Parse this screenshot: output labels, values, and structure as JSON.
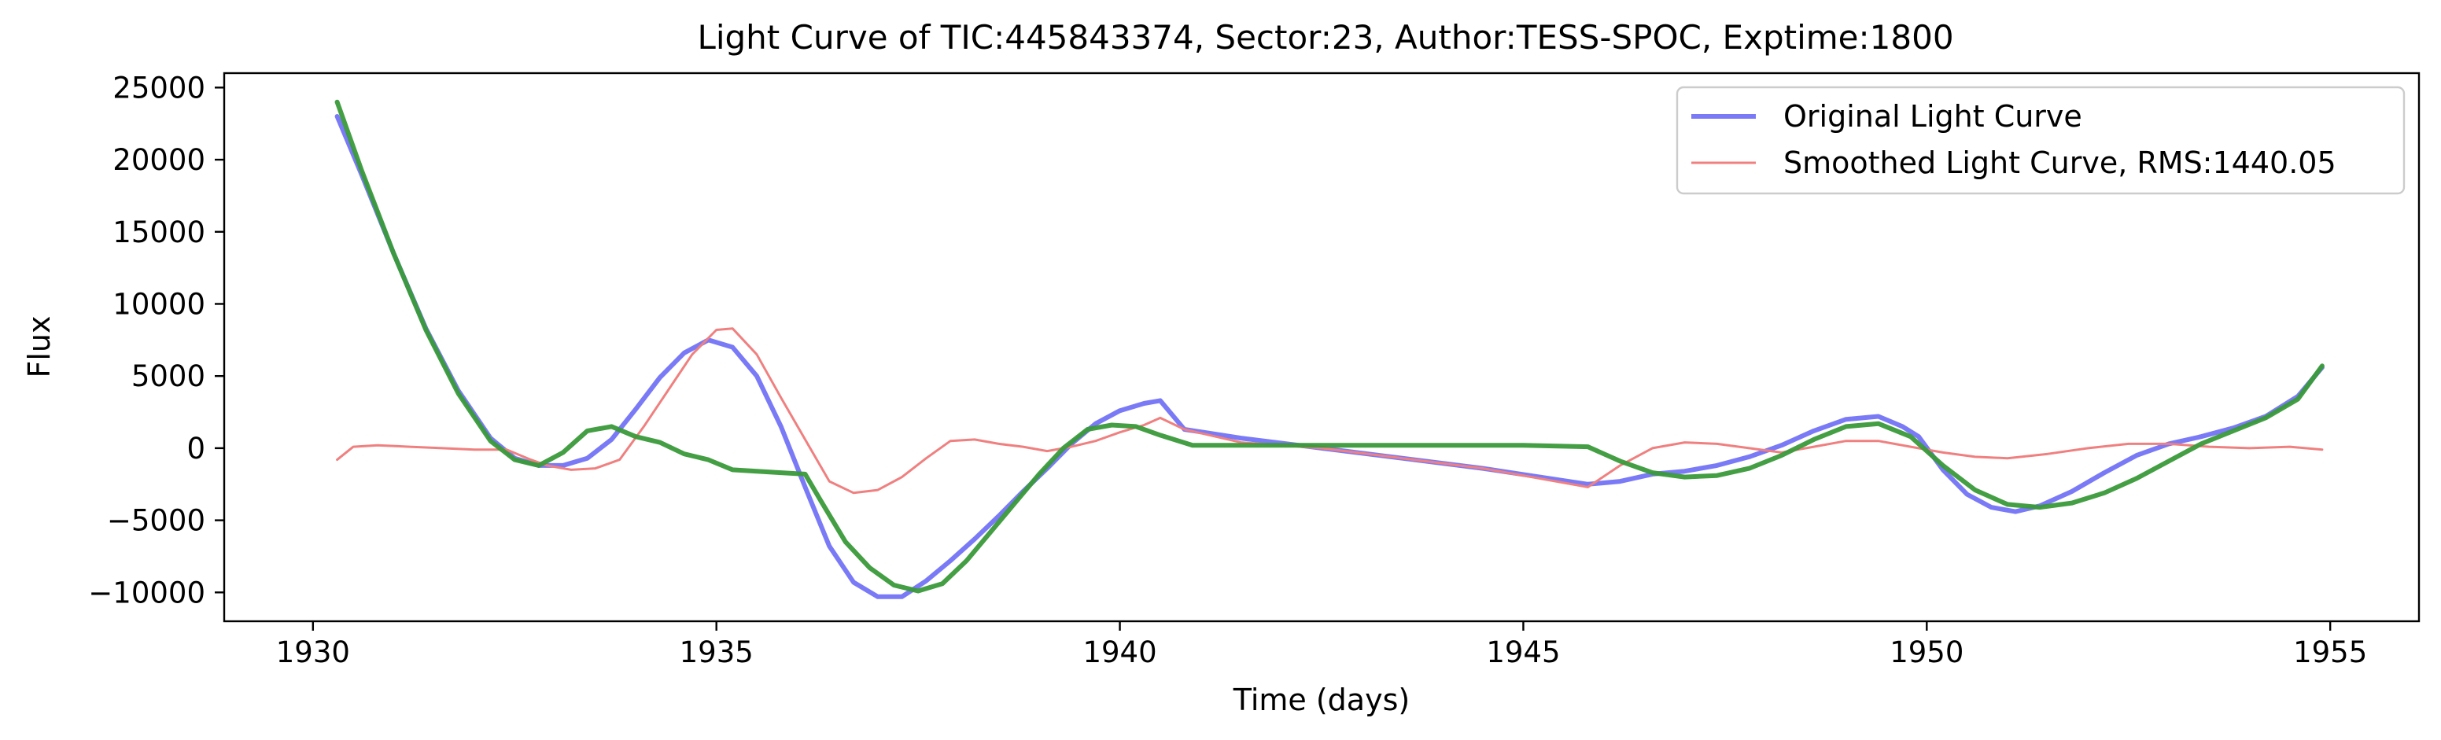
{
  "chart_data": {
    "type": "line",
    "title": "Light Curve of TIC:445843374, Sector:23, Author:TESS-SPOC, Exptime:1800",
    "xlabel": "Time (days)",
    "ylabel": "Flux",
    "xlim": [
      1928.9,
      1956.1
    ],
    "ylim": [
      -12000,
      26000
    ],
    "xticks": [
      1930,
      1935,
      1940,
      1945,
      1950,
      1955
    ],
    "yticks": [
      -10000,
      -5000,
      0,
      5000,
      10000,
      15000,
      20000,
      25000
    ],
    "grid": false,
    "legend_position": "upper right",
    "series": [
      {
        "name": "Original Light Curve",
        "color": "#7a7af7",
        "x": [
          1930.3,
          1930.6,
          1931.0,
          1931.4,
          1931.8,
          1932.2,
          1932.5,
          1932.8,
          1933.1,
          1933.4,
          1933.7,
          1934.0,
          1934.3,
          1934.6,
          1934.9,
          1935.2,
          1935.5,
          1935.8,
          1936.1,
          1936.4,
          1936.7,
          1937.0,
          1937.3,
          1937.6,
          1937.9,
          1938.2,
          1938.5,
          1938.8,
          1939.1,
          1939.4,
          1939.7,
          1940.0,
          1940.3,
          1940.5,
          1940.8,
          1941.5,
          1942.5,
          1943.5,
          1944.5,
          1945.8,
          1946.2,
          1946.6,
          1947.0,
          1947.4,
          1947.8,
          1948.2,
          1948.6,
          1949.0,
          1949.4,
          1949.7,
          1949.9,
          1950.2,
          1950.5,
          1950.8,
          1951.1,
          1951.4,
          1951.8,
          1952.2,
          1952.6,
          1953.0,
          1953.4,
          1953.8,
          1954.2,
          1954.6,
          1954.9
        ],
        "values": [
          23000,
          19000,
          13500,
          8300,
          4000,
          700,
          -700,
          -1200,
          -1200,
          -700,
          600,
          2700,
          4900,
          6600,
          7500,
          7000,
          5000,
          1500,
          -2700,
          -6800,
          -9300,
          -10300,
          -10300,
          -9200,
          -7800,
          -6300,
          -4700,
          -3000,
          -1400,
          300,
          1700,
          2600,
          3100,
          3300,
          1300,
          700,
          0,
          -700,
          -1400,
          -2500,
          -2300,
          -1800,
          -1600,
          -1200,
          -600,
          200,
          1200,
          2000,
          2200,
          1500,
          800,
          -1500,
          -3200,
          -4100,
          -4400,
          -4000,
          -3000,
          -1700,
          -500,
          300,
          800,
          1400,
          2200,
          3600,
          5600
        ]
      },
      {
        "name": "Smoothed Light Curve, RMS:1440.05",
        "color": "#f08080",
        "x": [
          1930.3,
          1930.5,
          1930.8,
          1931.2,
          1931.6,
          1932.0,
          1932.4,
          1932.7,
          1932.9,
          1933.2,
          1933.5,
          1933.8,
          1934.1,
          1934.4,
          1934.7,
          1935.0,
          1935.2,
          1935.5,
          1935.8,
          1936.1,
          1936.4,
          1936.7,
          1937.0,
          1937.3,
          1937.6,
          1937.9,
          1938.2,
          1938.5,
          1938.8,
          1939.1,
          1939.4,
          1939.7,
          1940.0,
          1940.3,
          1940.5,
          1940.8,
          1941.5,
          1942.5,
          1943.5,
          1944.5,
          1945.8,
          1946.2,
          1946.6,
          1947.0,
          1947.4,
          1947.8,
          1948.2,
          1948.6,
          1949.0,
          1949.4,
          1949.8,
          1950.2,
          1950.6,
          1951.0,
          1951.5,
          1952.0,
          1952.5,
          1953.0,
          1953.5,
          1954.0,
          1954.5,
          1954.9
        ],
        "values": [
          -800,
          100,
          200,
          100,
          0,
          -100,
          -100,
          -800,
          -1200,
          -1500,
          -1400,
          -800,
          1500,
          4000,
          6500,
          8200,
          8300,
          6500,
          3500,
          600,
          -2300,
          -3100,
          -2900,
          -2000,
          -700,
          500,
          600,
          300,
          100,
          -200,
          100,
          500,
          1100,
          1600,
          2100,
          1300,
          400,
          0,
          -700,
          -1400,
          -2700,
          -1200,
          0,
          400,
          300,
          0,
          -300,
          100,
          500,
          500,
          100,
          -300,
          -600,
          -700,
          -400,
          0,
          300,
          300,
          100,
          0,
          100,
          -100
        ]
      },
      {
        "name": "",
        "color": "#3a9a3a",
        "x": [
          1930.3,
          1930.6,
          1931.0,
          1931.4,
          1931.8,
          1932.2,
          1932.5,
          1932.8,
          1933.1,
          1933.4,
          1933.7,
          1934.0,
          1934.3,
          1934.6,
          1934.9,
          1935.2,
          1935.5,
          1935.8,
          1936.1,
          1936.3,
          1936.6,
          1936.9,
          1937.2,
          1937.5,
          1937.8,
          1938.1,
          1938.4,
          1938.7,
          1939.0,
          1939.3,
          1939.6,
          1939.9,
          1940.2,
          1940.5,
          1940.9,
          1942.0,
          1943.5,
          1945.0,
          1945.8,
          1946.2,
          1946.6,
          1947.0,
          1947.4,
          1947.8,
          1948.2,
          1948.6,
          1949.0,
          1949.4,
          1949.8,
          1950.2,
          1950.6,
          1951.0,
          1951.4,
          1951.8,
          1952.2,
          1952.6,
          1953.0,
          1953.4,
          1953.8,
          1954.2,
          1954.6,
          1954.9
        ],
        "values": [
          24000,
          19300,
          13500,
          8200,
          3800,
          500,
          -800,
          -1200,
          -300,
          1200,
          1500,
          800,
          400,
          -400,
          -800,
          -1500,
          -1600,
          -1700,
          -1800,
          -3700,
          -6500,
          -8300,
          -9500,
          -9900,
          -9400,
          -7800,
          -5800,
          -3800,
          -1800,
          0,
          1300,
          1600,
          1500,
          900,
          200,
          200,
          200,
          200,
          100,
          -900,
          -1700,
          -2000,
          -1900,
          -1400,
          -500,
          600,
          1500,
          1700,
          800,
          -1200,
          -2900,
          -3900,
          -4100,
          -3800,
          -3100,
          -2100,
          -900,
          300,
          1200,
          2100,
          3400,
          5700
        ]
      }
    ]
  }
}
